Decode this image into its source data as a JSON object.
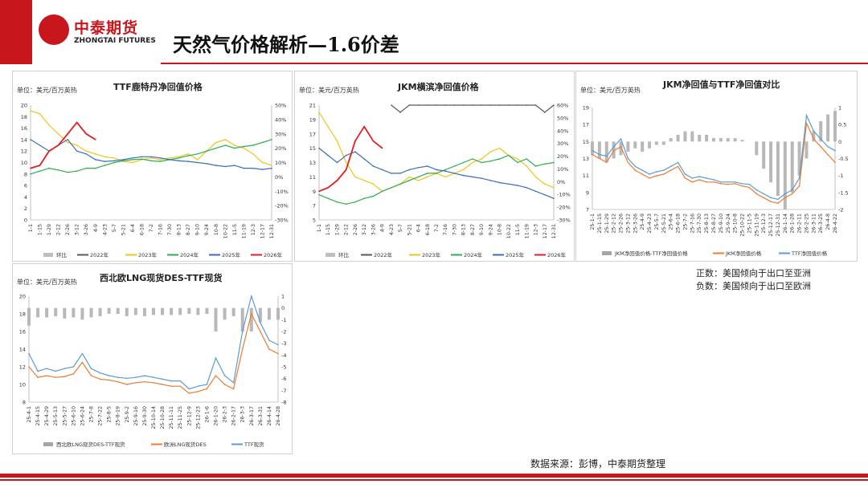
{
  "header": {
    "logo_cn": "中泰期货",
    "logo_en": "ZHONGTAI FUTURES",
    "title": "天然气价格解析—1.6价差"
  },
  "notes": {
    "positive": "正数：美国倾向于出口至亚洲",
    "negative": "负数：美国倾向于出口至欧洲"
  },
  "source": "数据来源：彭博，中泰期货整理",
  "chart_data": [
    {
      "type": "line",
      "title": "TTF鹿特丹净回值价格",
      "unit": "单位：美元/百万英热",
      "y_left": [
        0,
        20
      ],
      "y_left_ticks": [
        "0",
        "2",
        "4",
        "6",
        "8",
        "10",
        "12",
        "14",
        "16",
        "18",
        "20"
      ],
      "y_right_ticks": [
        "-30%",
        "-20%",
        "-10%",
        "0%",
        "10%",
        "20%",
        "30%",
        "40%",
        "50%"
      ],
      "categories": [
        "1-1",
        "1-15",
        "1-29",
        "2-12",
        "2-26",
        "3-12",
        "3-26",
        "4-9",
        "4-23",
        "5-7",
        "5-21",
        "6-4",
        "6-18",
        "7-2",
        "7-16",
        "7-30",
        "8-13",
        "8-27",
        "9-10",
        "9-24",
        "10-8",
        "10-22",
        "11-5",
        "11-19",
        "12-3",
        "12-17",
        "12-31"
      ],
      "legend": [
        "环比",
        "2022年",
        "2023年",
        "2024年",
        "2025年",
        "2026年"
      ],
      "colors": {
        "环比": "#bfbfbf",
        "2022年": "#595959",
        "2023年": "#f0c419",
        "2024年": "#2eae4f",
        "2025年": "#3a6fb7",
        "2026年": "#e02020"
      },
      "series": [
        {
          "name": "2023年",
          "values": [
            19,
            18.5,
            16.5,
            15,
            13.5,
            13,
            12,
            11.5,
            11,
            10.8,
            10.2,
            10,
            10.5,
            10.8,
            10.5,
            10.8,
            11,
            11.5,
            10.5,
            12,
            13.5,
            14,
            13,
            12.5,
            11.5,
            10,
            9.5
          ]
        },
        {
          "name": "2024年",
          "values": [
            8,
            8.5,
            9,
            8.7,
            8.3,
            8.5,
            9,
            9,
            9.5,
            10,
            10.3,
            10.5,
            10.6,
            10.3,
            10.2,
            10.5,
            10.8,
            11.2,
            11.5,
            12,
            12.5,
            13,
            12.5,
            12.8,
            13,
            13.5,
            14
          ]
        },
        {
          "name": "2025年",
          "values": [
            14,
            13,
            12,
            13,
            14,
            12,
            11.5,
            10.5,
            10.2,
            10.3,
            10.5,
            10.8,
            11,
            11,
            10.8,
            10.5,
            10.3,
            10.2,
            10,
            9.8,
            9.5,
            9.3,
            9.5,
            9,
            9,
            8.8,
            9
          ]
        },
        {
          "name": "2026年",
          "values": [
            9,
            9.5,
            12,
            13,
            15,
            17,
            15,
            14,
            null,
            null,
            null,
            null,
            null,
            null,
            null,
            null,
            null,
            null,
            null,
            null,
            null,
            null,
            null,
            null,
            null,
            null,
            null
          ]
        }
      ]
    },
    {
      "type": "line",
      "title": "JKM横滨净回值价格",
      "unit": "单位：美元/百万英热",
      "y_left": [
        5,
        21
      ],
      "y_left_ticks": [
        "5",
        "7",
        "9",
        "11",
        "13",
        "15",
        "17",
        "19",
        "21"
      ],
      "y_right_ticks": [
        "-30%",
        "-20%",
        "-10%",
        "0%",
        "10%",
        "20%",
        "30%",
        "40%",
        "50%",
        "60%"
      ],
      "categories": [
        "1-1",
        "1-15",
        "1-29",
        "2-12",
        "2-26",
        "3-12",
        "3-26",
        "4-9",
        "4-23",
        "5-7",
        "5-21",
        "6-4",
        "6-18",
        "7-2",
        "7-16",
        "7-30",
        "8-13",
        "8-27",
        "9-10",
        "9-24",
        "10-8",
        "10-22",
        "11-5",
        "11-19",
        "12-3",
        "12-17",
        "12-31"
      ],
      "legend": [
        "环比",
        "2022年",
        "2023年",
        "2024年",
        "2025年",
        "2026年"
      ],
      "colors": {
        "环比": "#bfbfbf",
        "2022年": "#595959",
        "2023年": "#f0c419",
        "2024年": "#2eae4f",
        "2025年": "#3a6fb7",
        "2026年": "#e02020"
      },
      "series": [
        {
          "name": "2022年",
          "values": [
            null,
            null,
            null,
            null,
            null,
            null,
            null,
            null,
            21,
            20,
            21,
            21,
            21,
            21,
            21,
            21,
            21,
            21,
            21,
            21,
            21,
            21,
            21,
            21,
            21,
            20,
            21
          ]
        },
        {
          "name": "2023年",
          "values": [
            20,
            18,
            16,
            13,
            11,
            10.5,
            10,
            9,
            9.5,
            10,
            11,
            10.5,
            11,
            11.5,
            11,
            11.5,
            12,
            13,
            13.5,
            14.5,
            15,
            14,
            13.5,
            12.5,
            11,
            10,
            9.5
          ]
        },
        {
          "name": "2024年",
          "values": [
            8.5,
            8,
            7.5,
            7.2,
            7.5,
            8,
            8.3,
            9,
            9.5,
            10,
            10.5,
            11,
            11.5,
            11.5,
            12,
            12.5,
            13,
            13.5,
            13,
            13.2,
            13.5,
            14,
            13,
            13.5,
            12.5,
            12.8,
            13
          ]
        },
        {
          "name": "2025年",
          "values": [
            15,
            14,
            13,
            14,
            14.5,
            13.5,
            12.5,
            12,
            11.5,
            11.5,
            12,
            12.3,
            12.5,
            12,
            11.8,
            11.5,
            11.2,
            11,
            10.8,
            10.5,
            10.2,
            10,
            9.8,
            9.5,
            9,
            8.5,
            8
          ]
        },
        {
          "name": "2026年",
          "values": [
            9,
            9.5,
            10.5,
            12,
            16,
            18,
            16,
            15,
            null,
            null,
            null,
            null,
            null,
            null,
            null,
            null,
            null,
            null,
            null,
            null,
            null,
            null,
            null,
            null,
            null,
            null,
            null
          ]
        }
      ]
    },
    {
      "type": "line",
      "title": "JKM净回值与TTF净回值对比",
      "unit": "单位：美元/百万英热",
      "y_left_ticks": [
        "7",
        "9",
        "11",
        "13",
        "15",
        "17",
        "19"
      ],
      "y_right_ticks": [
        "-2",
        "-1.5",
        "-1",
        "-0.5",
        "0",
        "0.5",
        "1"
      ],
      "categories": [
        "25-1-1",
        "25-1-15",
        "25-1-29",
        "25-2-12",
        "25-2-26",
        "25-3-12",
        "25-3-26",
        "25-4-9",
        "25-4-23",
        "25-5-7",
        "25-5-21",
        "25-6-4",
        "25-6-18",
        "25-7-2",
        "25-7-16",
        "25-7-30",
        "25-8-13",
        "25-8-27",
        "25-9-10",
        "25-9-24",
        "25-10-8",
        "25-10-22",
        "25-11-5",
        "25-11-19",
        "25-12-3",
        "25-12-17",
        "25-12-31",
        "26-1-14",
        "26-1-28",
        "26-2-11",
        "26-2-25",
        "26-3-11",
        "26-3-25",
        "26-4-8",
        "26-4-22"
      ],
      "legend": [
        "JKM净回值价格-TTF净回值价格",
        "JKM净回值价格",
        "TTF净回值价格"
      ],
      "colors": {
        "JKM净回值价格-TTF净回值价格": "#a6a6a6",
        "JKM净回值价格": "#ed7d31",
        "TTF净回值价格": "#5b9bd5"
      },
      "series": [
        {
          "name": "JKM净回值价格",
          "values": [
            14,
            13.5,
            13,
            14.5,
            15,
            13,
            12,
            11.5,
            11,
            11.3,
            11.5,
            12,
            12.5,
            11,
            10.5,
            10.8,
            10.5,
            10.5,
            10.3,
            10.2,
            10.3,
            10,
            9.8,
            9,
            8.5,
            8,
            7.8,
            8.5,
            9,
            10,
            18,
            16,
            15,
            14,
            13
          ]
        },
        {
          "name": "TTF净回值价格",
          "values": [
            14.5,
            14,
            13.8,
            15,
            16,
            13.5,
            12.5,
            12,
            11.5,
            11.8,
            12,
            12.5,
            13,
            11.5,
            11,
            11.2,
            11,
            10.8,
            10.5,
            10.5,
            10.5,
            10.3,
            10.2,
            9.5,
            9,
            8.5,
            8.3,
            9,
            9.5,
            11,
            19,
            17,
            16,
            15,
            14.5
          ]
        },
        {
          "name": "JKM净回值价格-TTF净回值价格",
          "values": [
            -0.4,
            -0.5,
            -0.6,
            -0.5,
            -0.4,
            -0.3,
            -0.2,
            -0.3,
            -0.2,
            -0.1,
            -0.1,
            0.1,
            0.2,
            0.3,
            0.3,
            0.2,
            0.2,
            0.1,
            0.1,
            0.1,
            0.1,
            0.05,
            0,
            -0.4,
            -0.8,
            -1.2,
            -1.6,
            -2,
            -1.5,
            -1,
            -0.5,
            0.3,
            0.6,
            0.8,
            0.9
          ]
        }
      ]
    },
    {
      "type": "line",
      "title": "西北欧LNG现货DES-TTF现货",
      "unit": "单位：美元/百万英热",
      "y_left_ticks": [
        "8",
        "10",
        "12",
        "14",
        "16",
        "18",
        "20"
      ],
      "y_right_ticks": [
        "-8",
        "-7",
        "-6",
        "-5",
        "-4",
        "-3",
        "-2",
        "-1",
        "0",
        "1"
      ],
      "categories": [
        "25-4-1",
        "25-4-15",
        "25-4-29",
        "25-5-13",
        "25-5-27",
        "25-6-10",
        "25-6-24",
        "25-7-8",
        "25-7-22",
        "25-8-5",
        "25-8-19",
        "25-9-2",
        "25-9-16",
        "25-9-30",
        "25-10-14",
        "25-10-28",
        "25-11-11",
        "25-11-25",
        "25-12-9",
        "25-12-23",
        "26-1-6",
        "26-1-20",
        "26-2-3",
        "26-2-17",
        "26-3-3",
        "26-3-17",
        "26-3-31",
        "26-4-14",
        "26-4-28"
      ],
      "legend": [
        "西北欧LNG现货DES-TTF现货",
        "欧洲LNG现货DES",
        "TTF现货"
      ],
      "colors": {
        "西北欧LNG现货DES-TTF现货": "#a6a6a6",
        "欧洲LNG现货DES": "#ed7d31",
        "TTF现货": "#5b9bd5"
      },
      "series": [
        {
          "name": "欧洲LNG现货DES",
          "values": [
            12,
            10.8,
            11,
            10.8,
            10.9,
            11.2,
            12.5,
            11,
            10.6,
            10.5,
            10.3,
            10,
            10.2,
            10.3,
            10.2,
            10,
            9.8,
            9.8,
            9,
            9.2,
            9.5,
            11,
            10,
            9.5,
            14,
            18,
            16,
            14,
            13.5
          ]
        },
        {
          "name": "TTF现货",
          "values": [
            13.5,
            11.5,
            11.8,
            11.5,
            11.8,
            12,
            13.5,
            11.8,
            11.3,
            11,
            10.8,
            10.7,
            10.8,
            11,
            10.8,
            10.6,
            10.4,
            10.4,
            9.5,
            9.8,
            10,
            13,
            11,
            10.2,
            16,
            20,
            17,
            15,
            14.5
          ]
        },
        {
          "name": "西北欧LNG现货DES-TTF现货",
          "values": [
            -1.5,
            -0.8,
            -0.8,
            -0.7,
            -0.9,
            -0.8,
            -1,
            -0.8,
            -0.7,
            -0.5,
            -0.5,
            -0.7,
            -0.6,
            -0.7,
            -0.6,
            -0.6,
            -0.6,
            -0.6,
            -0.5,
            -0.6,
            -0.5,
            -2,
            -1,
            -0.7,
            -2,
            -2,
            -1.2,
            -1,
            -1
          ]
        }
      ]
    }
  ]
}
